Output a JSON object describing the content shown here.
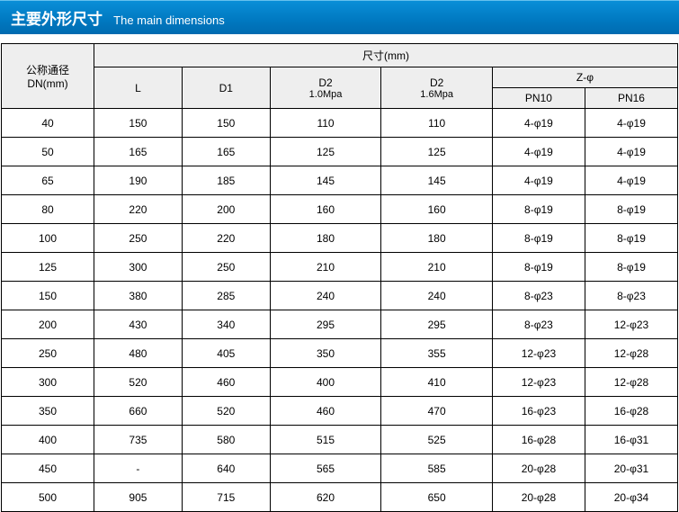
{
  "title": {
    "cn": "主要外形尺寸",
    "en": "The main dimensions"
  },
  "header": {
    "dn_line1": "公称通径",
    "dn_line2": "DN(mm)",
    "dims": "尺寸(mm)",
    "L": "L",
    "D1": "D1",
    "D2a_main": "D2",
    "D2a_sub": "1.0Mpa",
    "D2b_main": "D2",
    "D2b_sub": "1.6Mpa",
    "Zphi": "Z-φ",
    "PN10": "PN10",
    "PN16": "PN16"
  },
  "rows": [
    {
      "dn": "40",
      "L": "150",
      "D1": "150",
      "D2a": "110",
      "D2b": "110",
      "pn10": "4-φ19",
      "pn16": "4-φ19"
    },
    {
      "dn": "50",
      "L": "165",
      "D1": "165",
      "D2a": "125",
      "D2b": "125",
      "pn10": "4-φ19",
      "pn16": "4-φ19"
    },
    {
      "dn": "65",
      "L": "190",
      "D1": "185",
      "D2a": "145",
      "D2b": "145",
      "pn10": "4-φ19",
      "pn16": "4-φ19"
    },
    {
      "dn": "80",
      "L": "220",
      "D1": "200",
      "D2a": "160",
      "D2b": "160",
      "pn10": "8-φ19",
      "pn16": "8-φ19"
    },
    {
      "dn": "100",
      "L": "250",
      "D1": "220",
      "D2a": "180",
      "D2b": "180",
      "pn10": "8-φ19",
      "pn16": "8-φ19"
    },
    {
      "dn": "125",
      "L": "300",
      "D1": "250",
      "D2a": "210",
      "D2b": "210",
      "pn10": "8-φ19",
      "pn16": "8-φ19"
    },
    {
      "dn": "150",
      "L": "380",
      "D1": "285",
      "D2a": "240",
      "D2b": "240",
      "pn10": "8-φ23",
      "pn16": "8-φ23"
    },
    {
      "dn": "200",
      "L": "430",
      "D1": "340",
      "D2a": "295",
      "D2b": "295",
      "pn10": "8-φ23",
      "pn16": "12-φ23"
    },
    {
      "dn": "250",
      "L": "480",
      "D1": "405",
      "D2a": "350",
      "D2b": "355",
      "pn10": "12-φ23",
      "pn16": "12-φ28"
    },
    {
      "dn": "300",
      "L": "520",
      "D1": "460",
      "D2a": "400",
      "D2b": "410",
      "pn10": "12-φ23",
      "pn16": "12-φ28"
    },
    {
      "dn": "350",
      "L": "660",
      "D1": "520",
      "D2a": "460",
      "D2b": "470",
      "pn10": "16-φ23",
      "pn16": "16-φ28"
    },
    {
      "dn": "400",
      "L": "735",
      "D1": "580",
      "D2a": "515",
      "D2b": "525",
      "pn10": "16-φ28",
      "pn16": "16-φ31"
    },
    {
      "dn": "450",
      "L": "-",
      "D1": "640",
      "D2a": "565",
      "D2b": "585",
      "pn10": "20-φ28",
      "pn16": "20-φ31"
    },
    {
      "dn": "500",
      "L": "905",
      "D1": "715",
      "D2a": "620",
      "D2b": "650",
      "pn10": "20-φ28",
      "pn16": "20-φ34"
    }
  ],
  "styles": {
    "title_bg_from": "#0a8fd8",
    "title_bg_to": "#006bb0",
    "header_bg": "#eeeeee",
    "border_color": "#000000",
    "text_color": "#000000"
  }
}
